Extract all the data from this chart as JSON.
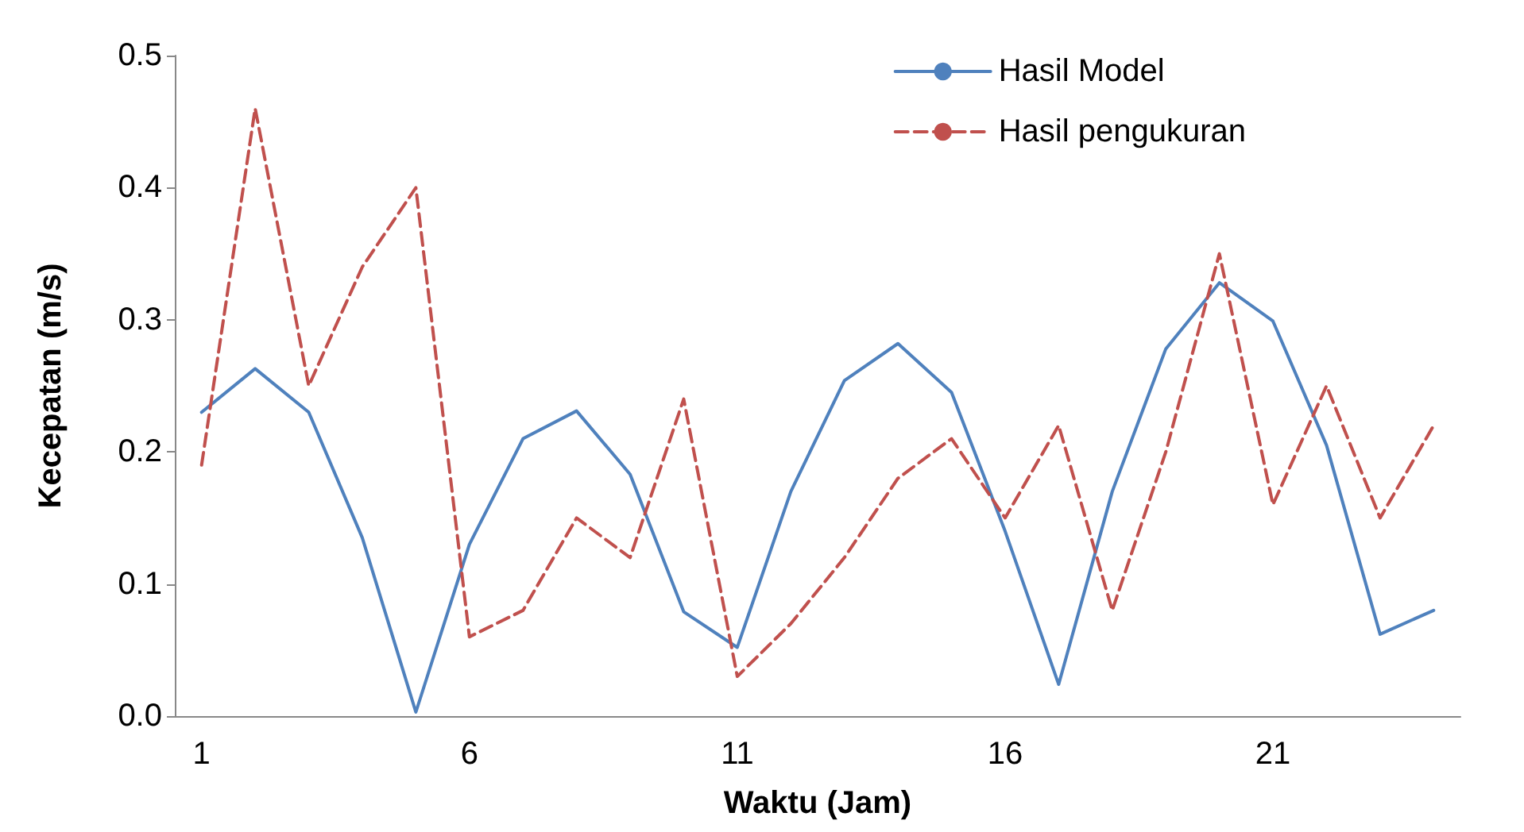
{
  "chart_data": {
    "type": "line",
    "xlabel": "Waktu (Jam)",
    "ylabel": "Kecepatan (m/s)",
    "categories": [
      "1",
      null,
      null,
      null,
      null,
      "6",
      null,
      null,
      null,
      null,
      "11",
      null,
      null,
      null,
      null,
      "16",
      null,
      null,
      null,
      null,
      "21",
      null,
      null,
      null
    ],
    "series": [
      {
        "name": "Hasil Model",
        "color": "#4f81bd",
        "line_style": "solid",
        "values": [
          0.23,
          0.263,
          0.23,
          0.135,
          0.003,
          0.13,
          0.21,
          0.231,
          0.183,
          0.079,
          0.052,
          0.17,
          0.254,
          0.282,
          0.245,
          0.14,
          0.024,
          0.17,
          0.278,
          0.328,
          0.299,
          0.205,
          0.062,
          0.08
        ]
      },
      {
        "name": "Hasil pengukuran",
        "color": "#c0504d",
        "line_style": "dashed",
        "values": [
          0.19,
          0.46,
          0.25,
          0.34,
          0.4,
          0.06,
          0.08,
          0.15,
          0.12,
          0.24,
          0.03,
          0.07,
          0.12,
          0.18,
          0.21,
          0.15,
          0.22,
          0.08,
          0.2,
          0.35,
          0.16,
          0.25,
          0.15,
          0.22
        ]
      }
    ],
    "ylim": [
      0,
      0.5
    ],
    "yticks": [
      {
        "value": 0,
        "label": "0.0"
      },
      {
        "value": 0.1,
        "label": "0.1"
      },
      {
        "value": 0.2,
        "label": "0.2"
      },
      {
        "value": 0.3,
        "label": "0.3"
      },
      {
        "value": 0.4,
        "label": "0.4"
      },
      {
        "value": 0.5,
        "label": "0.5"
      }
    ],
    "grid": false,
    "legend": "top right",
    "marker": "none"
  }
}
